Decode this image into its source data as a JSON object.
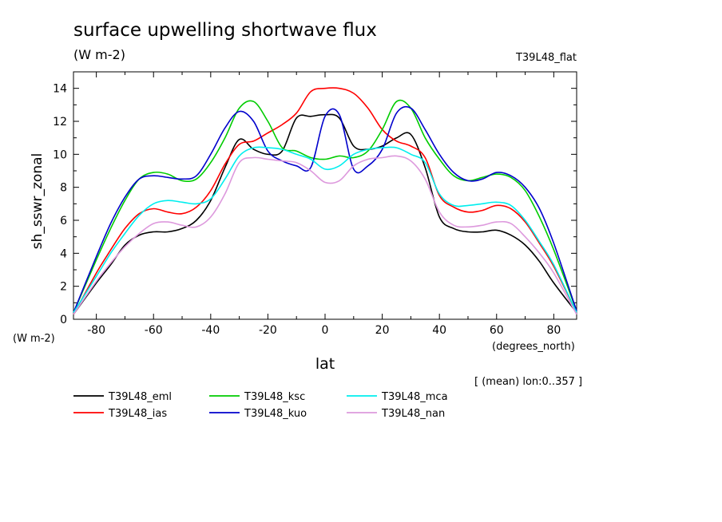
{
  "chart_data": {
    "type": "line",
    "title": "surface upwelling shortwave flux",
    "units": "(W m-2)",
    "experiment_label": "T39L48_flat",
    "ylabel": "sh_sswr_zonal",
    "y_units": "(W m-2)",
    "xlabel": "lat",
    "x_units": "(degrees_north)",
    "averaging_note": "[ (mean) lon:0..357 ]",
    "xlim": [
      -88,
      88
    ],
    "ylim": [
      0,
      15
    ],
    "x_ticks": [
      -80,
      -60,
      -40,
      -20,
      0,
      20,
      40,
      60,
      80
    ],
    "y_ticks": [
      0,
      2,
      4,
      6,
      8,
      10,
      12,
      14
    ],
    "grid": false,
    "legend_position": "bottom",
    "x": [
      -88,
      -80,
      -75,
      -70,
      -65,
      -60,
      -55,
      -50,
      -45,
      -40,
      -35,
      -30,
      -25,
      -20,
      -15,
      -10,
      -5,
      0,
      5,
      10,
      15,
      20,
      25,
      30,
      35,
      40,
      45,
      50,
      55,
      60,
      65,
      70,
      75,
      80,
      88
    ],
    "series": [
      {
        "name": "T39L48_eml",
        "color": "#000000",
        "values": [
          0.3,
          2.2,
          3.3,
          4.5,
          5.1,
          5.3,
          5.3,
          5.5,
          6.0,
          7.2,
          9.2,
          10.9,
          10.3,
          10.0,
          10.2,
          12.2,
          12.3,
          12.4,
          12.2,
          10.5,
          10.3,
          10.5,
          11.0,
          11.2,
          9.2,
          6.2,
          5.5,
          5.3,
          5.3,
          5.4,
          5.1,
          4.5,
          3.5,
          2.2,
          0.4
        ]
      },
      {
        "name": "T39L48_ias",
        "color": "#ff0000",
        "values": [
          0.3,
          2.8,
          4.2,
          5.5,
          6.4,
          6.7,
          6.5,
          6.4,
          6.8,
          7.8,
          9.4,
          10.6,
          10.8,
          11.3,
          11.8,
          12.5,
          13.8,
          14.0,
          14.0,
          13.7,
          12.8,
          11.5,
          10.8,
          10.5,
          9.8,
          7.5,
          6.8,
          6.5,
          6.6,
          6.9,
          6.7,
          5.9,
          4.6,
          3.2,
          0.4
        ]
      },
      {
        "name": "T39L48_ksc",
        "color": "#00cc00",
        "values": [
          0.4,
          3.6,
          5.5,
          7.2,
          8.5,
          8.9,
          8.8,
          8.4,
          8.5,
          9.5,
          11.0,
          12.8,
          13.2,
          12.0,
          10.4,
          10.2,
          9.8,
          9.7,
          9.9,
          9.8,
          10.2,
          11.5,
          13.2,
          12.8,
          11.0,
          9.7,
          8.7,
          8.4,
          8.6,
          8.8,
          8.6,
          7.8,
          6.2,
          4.2,
          0.5
        ]
      },
      {
        "name": "T39L48_kuo",
        "color": "#0000cc",
        "values": [
          0.4,
          3.8,
          5.8,
          7.4,
          8.5,
          8.7,
          8.6,
          8.5,
          8.7,
          10.0,
          11.6,
          12.6,
          12.0,
          10.2,
          9.6,
          9.3,
          9.2,
          12.3,
          12.4,
          9.1,
          9.3,
          10.3,
          12.5,
          12.8,
          11.5,
          10.0,
          8.9,
          8.4,
          8.5,
          8.9,
          8.7,
          8.0,
          6.7,
          4.6,
          0.5
        ]
      },
      {
        "name": "T39L48_mca",
        "color": "#00eeee",
        "values": [
          0.4,
          2.6,
          4.0,
          5.2,
          6.3,
          7.0,
          7.2,
          7.1,
          7.0,
          7.3,
          8.5,
          9.9,
          10.4,
          10.4,
          10.3,
          10.0,
          9.7,
          9.1,
          9.3,
          10.0,
          10.3,
          10.4,
          10.4,
          10.0,
          9.5,
          7.6,
          6.9,
          6.9,
          7.0,
          7.1,
          6.9,
          6.0,
          4.7,
          3.3,
          0.4
        ]
      },
      {
        "name": "T39L48_nan",
        "color": "#dd99dd",
        "values": [
          0.3,
          2.3,
          3.4,
          4.4,
          5.2,
          5.8,
          5.9,
          5.7,
          5.6,
          6.2,
          7.6,
          9.5,
          9.8,
          9.7,
          9.6,
          9.5,
          9.0,
          8.3,
          8.4,
          9.3,
          9.7,
          9.8,
          9.9,
          9.6,
          8.5,
          6.5,
          5.7,
          5.6,
          5.7,
          5.9,
          5.8,
          5.0,
          4.0,
          2.8,
          0.3
        ]
      }
    ]
  }
}
